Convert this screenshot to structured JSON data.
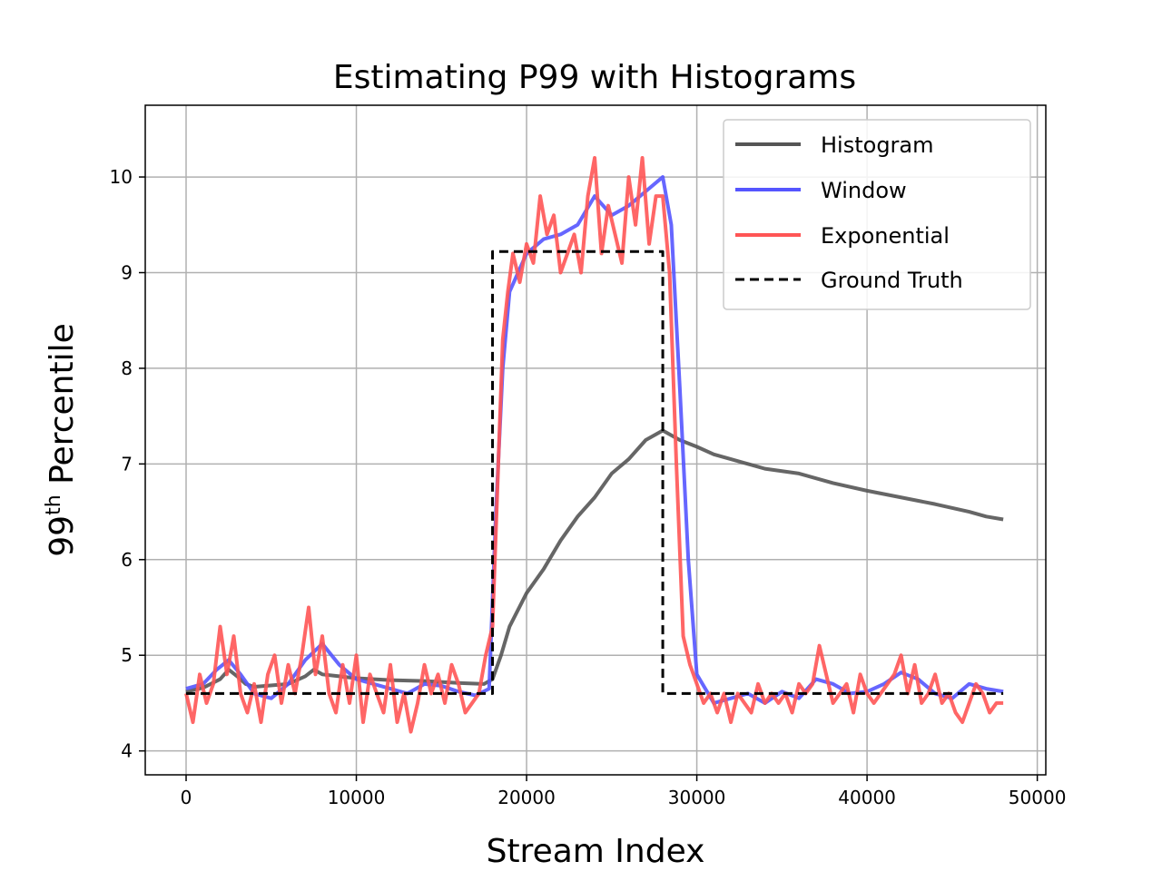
{
  "chart_data": {
    "type": "line",
    "title": "Estimating P99 with Histograms",
    "xlabel": "Stream Index",
    "ylabel_base": "99",
    "ylabel_sup": "th",
    "ylabel_rest": " Percentile",
    "xlim": [
      -2400,
      50500
    ],
    "ylim": [
      3.75,
      10.75
    ],
    "xticks": [
      0,
      10000,
      20000,
      30000,
      40000,
      50000
    ],
    "yticks": [
      4,
      5,
      6,
      7,
      8,
      9,
      10
    ],
    "grid": true,
    "legend_position": "top-right",
    "series": [
      {
        "name": "Histogram",
        "color": "#555555",
        "style": "solid",
        "x": [
          0,
          1000,
          2000,
          2500,
          3000,
          3500,
          4000,
          6000,
          7000,
          7500,
          8000,
          9000,
          10000,
          12000,
          14000,
          16000,
          17500,
          18000,
          18500,
          19000,
          20000,
          21000,
          22000,
          23000,
          24000,
          25000,
          26000,
          27000,
          28000,
          28500,
          29000,
          30000,
          31000,
          32000,
          33000,
          34000,
          36000,
          38000,
          40000,
          42000,
          44000,
          46000,
          47000,
          48000
        ],
        "values": [
          4.62,
          4.66,
          4.75,
          4.85,
          4.78,
          4.7,
          4.67,
          4.7,
          4.78,
          4.85,
          4.8,
          4.78,
          4.76,
          4.74,
          4.73,
          4.71,
          4.7,
          4.75,
          5.0,
          5.3,
          5.65,
          5.9,
          6.2,
          6.45,
          6.65,
          6.9,
          7.05,
          7.25,
          7.35,
          7.3,
          7.25,
          7.18,
          7.1,
          7.05,
          7.0,
          6.95,
          6.9,
          6.8,
          6.72,
          6.65,
          6.58,
          6.5,
          6.45,
          6.42
        ]
      },
      {
        "name": "Window",
        "color": "#5555ff",
        "style": "solid",
        "x": [
          0,
          1000,
          1800,
          2500,
          3200,
          4000,
          5000,
          6000,
          7000,
          8000,
          9000,
          10000,
          11000,
          12000,
          13000,
          14000,
          15000,
          16000,
          17000,
          17800,
          18200,
          18600,
          19000,
          19500,
          20000,
          21000,
          22000,
          23000,
          24000,
          25000,
          26000,
          27000,
          28000,
          28500,
          29000,
          29500,
          30000,
          31000,
          32000,
          33000,
          34000,
          35000,
          36000,
          37000,
          38000,
          39000,
          40000,
          41000,
          42000,
          43000,
          44000,
          45000,
          46000,
          47000,
          48000
        ],
        "values": [
          4.65,
          4.7,
          4.85,
          4.95,
          4.8,
          4.6,
          4.55,
          4.7,
          4.95,
          5.12,
          4.9,
          4.75,
          4.7,
          4.65,
          4.6,
          4.7,
          4.68,
          4.62,
          4.58,
          4.65,
          6.5,
          8.0,
          8.8,
          9.0,
          9.2,
          9.35,
          9.4,
          9.5,
          9.8,
          9.6,
          9.7,
          9.85,
          10.0,
          9.5,
          7.8,
          6.0,
          4.8,
          4.5,
          4.55,
          4.6,
          4.5,
          4.62,
          4.55,
          4.75,
          4.7,
          4.6,
          4.62,
          4.7,
          4.82,
          4.75,
          4.6,
          4.55,
          4.7,
          4.65,
          4.62
        ]
      },
      {
        "name": "Exponential",
        "color": "#ff5555",
        "style": "solid",
        "x": [
          0,
          400,
          800,
          1200,
          1600,
          2000,
          2400,
          2800,
          3200,
          3600,
          4000,
          4400,
          4800,
          5200,
          5600,
          6000,
          6400,
          6800,
          7200,
          7600,
          8000,
          8400,
          8800,
          9200,
          9600,
          10000,
          10400,
          10800,
          11200,
          11600,
          12000,
          12400,
          12800,
          13200,
          13600,
          14000,
          14400,
          14800,
          15200,
          15600,
          16000,
          16400,
          16800,
          17200,
          17600,
          18000,
          18300,
          18600,
          18900,
          19200,
          19600,
          20000,
          20400,
          20800,
          21200,
          21600,
          22000,
          22400,
          22800,
          23200,
          23600,
          24000,
          24400,
          24800,
          25200,
          25600,
          26000,
          26400,
          26800,
          27200,
          27600,
          28000,
          28400,
          28800,
          29200,
          29600,
          30000,
          30400,
          30800,
          31200,
          31600,
          32000,
          32400,
          32800,
          33200,
          33600,
          34000,
          34400,
          34800,
          35200,
          35600,
          36000,
          36400,
          36800,
          37200,
          37600,
          38000,
          38400,
          38800,
          39200,
          39600,
          40000,
          40400,
          40800,
          41200,
          41600,
          42000,
          42400,
          42800,
          43200,
          43600,
          44000,
          44400,
          44800,
          45200,
          45600,
          46000,
          46400,
          46800,
          47200,
          47600,
          48000
        ],
        "values": [
          4.6,
          4.3,
          4.8,
          4.5,
          4.7,
          5.3,
          4.8,
          5.2,
          4.6,
          4.4,
          4.7,
          4.3,
          4.8,
          5.0,
          4.5,
          4.9,
          4.6,
          5.0,
          5.5,
          4.8,
          5.2,
          4.6,
          4.4,
          4.9,
          4.5,
          5.0,
          4.3,
          4.8,
          4.6,
          4.4,
          4.9,
          4.3,
          4.6,
          4.2,
          4.5,
          4.9,
          4.6,
          4.8,
          4.5,
          4.9,
          4.7,
          4.4,
          4.5,
          4.6,
          5.0,
          5.3,
          6.8,
          8.3,
          8.8,
          9.2,
          8.9,
          9.3,
          9.1,
          9.8,
          9.4,
          9.6,
          9.0,
          9.2,
          9.4,
          9.0,
          9.8,
          10.2,
          9.2,
          9.7,
          9.4,
          9.1,
          10.0,
          9.5,
          10.2,
          9.3,
          9.8,
          9.8,
          9.0,
          7.0,
          5.2,
          4.9,
          4.7,
          4.5,
          4.6,
          4.4,
          4.6,
          4.3,
          4.6,
          4.5,
          4.4,
          4.7,
          4.5,
          4.6,
          4.5,
          4.6,
          4.4,
          4.7,
          4.6,
          4.7,
          5.1,
          4.8,
          4.5,
          4.6,
          4.7,
          4.4,
          4.8,
          4.6,
          4.5,
          4.6,
          4.7,
          4.8,
          5.0,
          4.6,
          4.9,
          4.5,
          4.6,
          4.8,
          4.5,
          4.6,
          4.4,
          4.3,
          4.5,
          4.7,
          4.6,
          4.4,
          4.5,
          4.5
        ],
        "alpha": 0.9
      },
      {
        "name": "Ground Truth",
        "color": "#000000",
        "style": "dashed",
        "x": [
          0,
          18000,
          18000,
          28000,
          28000,
          48000
        ],
        "values": [
          4.6,
          4.6,
          9.22,
          9.22,
          4.6,
          4.6
        ]
      }
    ]
  }
}
